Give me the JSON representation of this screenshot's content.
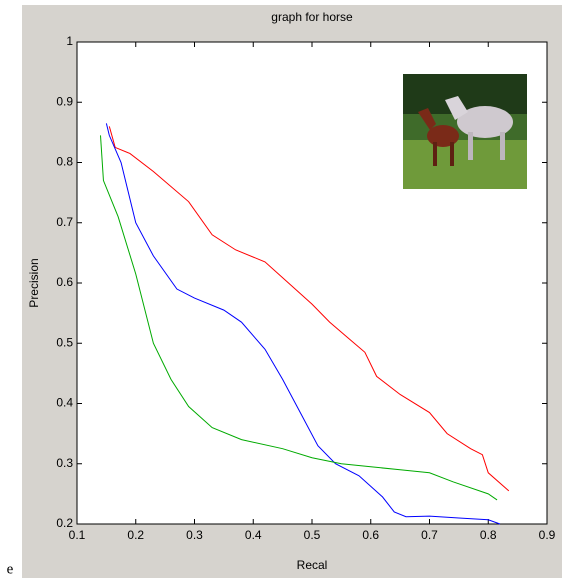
{
  "caption": "e",
  "chart_data": {
    "type": "line",
    "title": "graph for horse",
    "x_label": "Recal",
    "y_label": "Precision",
    "xlim": [
      0.1,
      0.9
    ],
    "ylim": [
      0.2,
      1
    ],
    "xticks": [
      0.1,
      0.2,
      0.3,
      0.4,
      0.5,
      0.6,
      0.7,
      0.8,
      0.9
    ],
    "yticks": [
      0.2,
      0.3,
      0.4,
      0.5,
      0.6,
      0.7,
      0.8,
      0.9,
      1
    ],
    "grid": false,
    "series": [
      {
        "color": "#ff0000",
        "x": [
          0.155,
          0.165,
          0.19,
          0.23,
          0.29,
          0.33,
          0.37,
          0.42,
          0.46,
          0.5,
          0.53,
          0.56,
          0.59,
          0.61,
          0.65,
          0.7,
          0.73,
          0.77,
          0.79,
          0.8,
          0.835
        ],
        "values": [
          0.86,
          0.825,
          0.815,
          0.785,
          0.735,
          0.68,
          0.655,
          0.635,
          0.6,
          0.565,
          0.535,
          0.51,
          0.485,
          0.445,
          0.415,
          0.385,
          0.35,
          0.325,
          0.315,
          0.285,
          0.255
        ]
      },
      {
        "color": "#0000ff",
        "x": [
          0.15,
          0.155,
          0.175,
          0.2,
          0.23,
          0.27,
          0.3,
          0.35,
          0.38,
          0.42,
          0.45,
          0.48,
          0.51,
          0.54,
          0.58,
          0.62,
          0.64,
          0.66,
          0.7,
          0.75,
          0.8,
          0.82
        ],
        "values": [
          0.865,
          0.845,
          0.8,
          0.7,
          0.645,
          0.59,
          0.575,
          0.555,
          0.535,
          0.49,
          0.44,
          0.385,
          0.33,
          0.3,
          0.28,
          0.245,
          0.22,
          0.212,
          0.213,
          0.21,
          0.207,
          0.2
        ]
      },
      {
        "color": "#00aa00",
        "x": [
          0.14,
          0.145,
          0.17,
          0.2,
          0.23,
          0.26,
          0.29,
          0.33,
          0.38,
          0.45,
          0.5,
          0.55,
          0.6,
          0.65,
          0.7,
          0.74,
          0.8,
          0.815
        ],
        "values": [
          0.845,
          0.77,
          0.71,
          0.615,
          0.5,
          0.44,
          0.395,
          0.36,
          0.34,
          0.325,
          0.31,
          0.3,
          0.295,
          0.29,
          0.285,
          0.27,
          0.25,
          0.24
        ]
      }
    ]
  }
}
